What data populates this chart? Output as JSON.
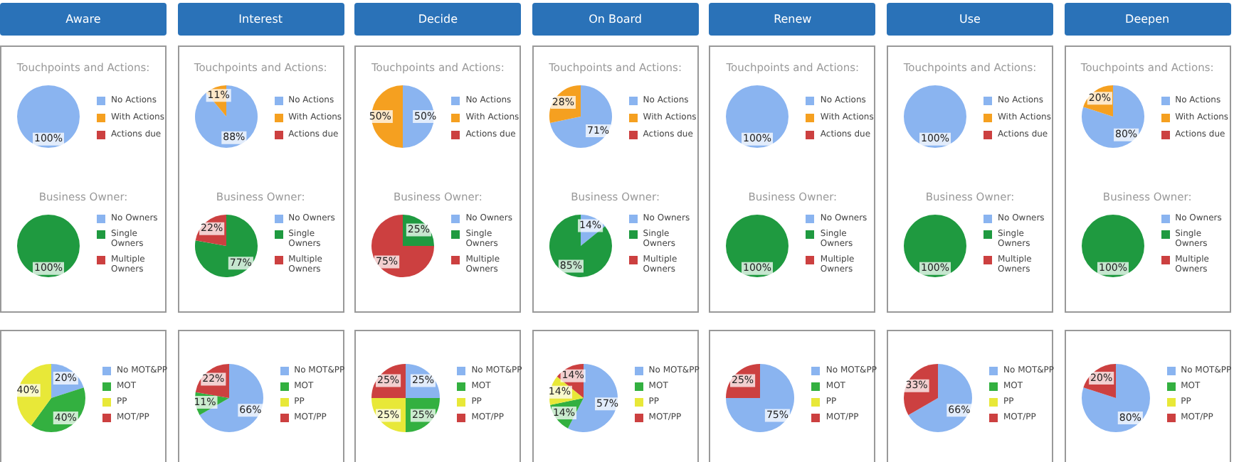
{
  "chart_data": [
    {
      "type": "pie",
      "title": "Aware",
      "subtitle": "Touchpoints and Actions:",
      "categories": [
        "No Actions",
        "With Actions",
        "Actions due"
      ],
      "values": [
        100,
        0,
        0
      ],
      "colors": [
        "#8ab4f0",
        "#f5a020",
        "#cc4040"
      ],
      "value_labels": [
        "100%",
        null,
        null
      ],
      "legend": "right"
    },
    {
      "type": "pie",
      "title": "Interest",
      "subtitle": "Touchpoints and Actions:",
      "categories": [
        "No Actions",
        "With Actions",
        "Actions due"
      ],
      "values": [
        88,
        11,
        0
      ],
      "colors": [
        "#8ab4f0",
        "#f5a020",
        "#cc4040"
      ],
      "value_labels": [
        "88%",
        "11%",
        null
      ],
      "legend": "right"
    },
    {
      "type": "pie",
      "title": "Decide",
      "subtitle": "Touchpoints and Actions:",
      "categories": [
        "No Actions",
        "With Actions",
        "Actions due"
      ],
      "values": [
        50,
        50,
        0
      ],
      "colors": [
        "#8ab4f0",
        "#f5a020",
        "#cc4040"
      ],
      "value_labels": [
        "50%",
        "50%",
        null
      ],
      "legend": "right"
    },
    {
      "type": "pie",
      "title": "On Board",
      "subtitle": "Touchpoints and Actions:",
      "categories": [
        "No Actions",
        "With Actions",
        "Actions due"
      ],
      "values": [
        71,
        28,
        0
      ],
      "colors": [
        "#8ab4f0",
        "#f5a020",
        "#cc4040"
      ],
      "value_labels": [
        "71%",
        "28%",
        null
      ],
      "legend": "right"
    },
    {
      "type": "pie",
      "title": "Renew",
      "subtitle": "Touchpoints and Actions:",
      "categories": [
        "No Actions",
        "With Actions",
        "Actions due"
      ],
      "values": [
        100,
        0,
        0
      ],
      "colors": [
        "#8ab4f0",
        "#f5a020",
        "#cc4040"
      ],
      "value_labels": [
        "100%",
        null,
        null
      ],
      "legend": "right"
    },
    {
      "type": "pie",
      "title": "Use",
      "subtitle": "Touchpoints and Actions:",
      "categories": [
        "No Actions",
        "With Actions",
        "Actions due"
      ],
      "values": [
        100,
        0,
        0
      ],
      "colors": [
        "#8ab4f0",
        "#f5a020",
        "#cc4040"
      ],
      "value_labels": [
        "100%",
        null,
        null
      ],
      "legend": "right"
    },
    {
      "type": "pie",
      "title": "Deepen",
      "subtitle": "Touchpoints and Actions:",
      "categories": [
        "No Actions",
        "With Actions",
        "Actions due"
      ],
      "values": [
        80,
        20,
        0
      ],
      "colors": [
        "#8ab4f0",
        "#f5a020",
        "#cc4040"
      ],
      "value_labels": [
        "80%",
        "20%",
        null
      ],
      "legend": "right"
    },
    {
      "type": "pie",
      "subtitle": "Business Owner:",
      "categories": [
        "No Owners",
        "Single Owners",
        "Multiple Owners"
      ],
      "values": [
        0,
        100,
        0
      ],
      "colors": [
        "#8ab4f0",
        "#1f9a40",
        "#cc4040"
      ],
      "value_labels": [
        null,
        "100%",
        null
      ],
      "legend": "right"
    },
    {
      "type": "pie",
      "subtitle": "Business Owner:",
      "categories": [
        "No Owners",
        "Single Owners",
        "Multiple Owners"
      ],
      "values": [
        0,
        77,
        22
      ],
      "colors": [
        "#8ab4f0",
        "#1f9a40",
        "#cc4040"
      ],
      "value_labels": [
        null,
        "77%",
        "22%"
      ],
      "legend": "right"
    },
    {
      "type": "pie",
      "subtitle": "Business Owner:",
      "categories": [
        "No Owners",
        "Single Owners",
        "Multiple Owners"
      ],
      "values": [
        0,
        25,
        75
      ],
      "colors": [
        "#8ab4f0",
        "#1f9a40",
        "#cc4040"
      ],
      "value_labels": [
        null,
        "25%",
        "75%"
      ],
      "legend": "right"
    },
    {
      "type": "pie",
      "subtitle": "Business Owner:",
      "categories": [
        "No Owners",
        "Single Owners",
        "Multiple Owners"
      ],
      "values": [
        14,
        85,
        0
      ],
      "colors": [
        "#8ab4f0",
        "#1f9a40",
        "#cc4040"
      ],
      "value_labels": [
        "14%",
        "85%",
        null
      ],
      "legend": "right"
    },
    {
      "type": "pie",
      "subtitle": "Business Owner:",
      "categories": [
        "No Owners",
        "Single Owners",
        "Multiple Owners"
      ],
      "values": [
        0,
        100,
        0
      ],
      "colors": [
        "#8ab4f0",
        "#1f9a40",
        "#cc4040"
      ],
      "value_labels": [
        null,
        "100%",
        null
      ],
      "legend": "right"
    },
    {
      "type": "pie",
      "subtitle": "Business Owner:",
      "categories": [
        "No Owners",
        "Single Owners",
        "Multiple Owners"
      ],
      "values": [
        0,
        100,
        0
      ],
      "colors": [
        "#8ab4f0",
        "#1f9a40",
        "#cc4040"
      ],
      "value_labels": [
        null,
        "100%",
        null
      ],
      "legend": "right"
    },
    {
      "type": "pie",
      "subtitle": "Business Owner:",
      "categories": [
        "No Owners",
        "Single Owners",
        "Multiple Owners"
      ],
      "values": [
        0,
        100,
        0
      ],
      "colors": [
        "#8ab4f0",
        "#1f9a40",
        "#cc4040"
      ],
      "value_labels": [
        null,
        "100%",
        null
      ],
      "legend": "right"
    },
    {
      "type": "pie",
      "categories": [
        "No MOT&PP",
        "MOT",
        "PP",
        "MOT/PP"
      ],
      "values": [
        20,
        40,
        40,
        0
      ],
      "colors": [
        "#8ab4f0",
        "#33b040",
        "#e8e838",
        "#cc4040"
      ],
      "value_labels": [
        "20%",
        "40%",
        "40%",
        null
      ],
      "legend": "right"
    },
    {
      "type": "pie",
      "categories": [
        "No MOT&PP",
        "MOT",
        "PP",
        "MOT/PP"
      ],
      "values": [
        66,
        11,
        0,
        22
      ],
      "colors": [
        "#8ab4f0",
        "#33b040",
        "#e8e838",
        "#cc4040"
      ],
      "value_labels": [
        "66%",
        "11%",
        null,
        "22%"
      ],
      "legend": "right"
    },
    {
      "type": "pie",
      "categories": [
        "No MOT&PP",
        "MOT",
        "PP",
        "MOT/PP"
      ],
      "values": [
        25,
        25,
        25,
        25
      ],
      "colors": [
        "#8ab4f0",
        "#33b040",
        "#e8e838",
        "#cc4040"
      ],
      "value_labels": [
        "25%",
        "25%",
        "25%",
        "25%"
      ],
      "legend": "right"
    },
    {
      "type": "pie",
      "categories": [
        "No MOT&PP",
        "MOT",
        "PP",
        "MOT/PP"
      ],
      "values": [
        57,
        14,
        14,
        14
      ],
      "colors": [
        "#8ab4f0",
        "#33b040",
        "#e8e838",
        "#cc4040"
      ],
      "value_labels": [
        "57%",
        "14%",
        "14%",
        "14%"
      ],
      "legend": "right"
    },
    {
      "type": "pie",
      "categories": [
        "No MOT&PP",
        "MOT",
        "PP",
        "MOT/PP"
      ],
      "values": [
        75,
        0,
        0,
        25
      ],
      "colors": [
        "#8ab4f0",
        "#33b040",
        "#e8e838",
        "#cc4040"
      ],
      "value_labels": [
        "75%",
        null,
        null,
        "25%"
      ],
      "legend": "right"
    },
    {
      "type": "pie",
      "categories": [
        "No MOT&PP",
        "MOT",
        "PP",
        "MOT/PP"
      ],
      "values": [
        66,
        0,
        0,
        33
      ],
      "colors": [
        "#8ab4f0",
        "#33b040",
        "#e8e838",
        "#cc4040"
      ],
      "value_labels": [
        "66%",
        null,
        null,
        "33%"
      ],
      "legend": "right"
    },
    {
      "type": "pie",
      "categories": [
        "No MOT&PP",
        "MOT",
        "PP",
        "MOT/PP"
      ],
      "values": [
        80,
        0,
        0,
        20
      ],
      "colors": [
        "#8ab4f0",
        "#33b040",
        "#e8e838",
        "#cc4040"
      ],
      "value_labels": [
        "80%",
        null,
        null,
        "20%"
      ],
      "legend": "right"
    }
  ]
}
